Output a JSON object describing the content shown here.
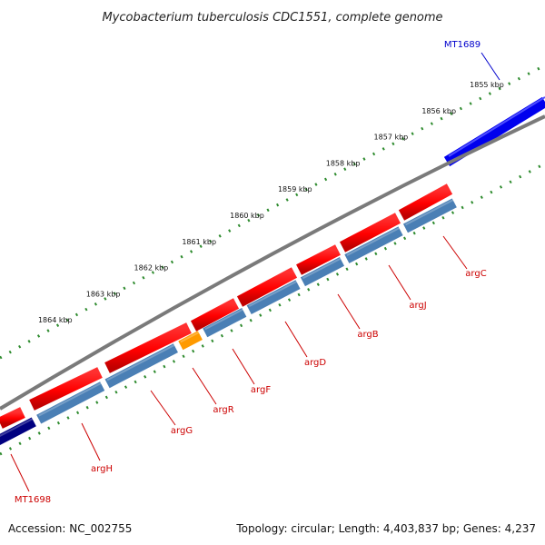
{
  "title": "Mycobacterium tuberculosis CDC1551, complete genome",
  "footer": {
    "accession": "Accession: NC_002755",
    "summary": "Topology: circular; Length: 4,403,837 bp; Genes: 4,237"
  },
  "colors": {
    "backbone": "#888888",
    "gene_red": "#ff0000",
    "gene_red_dark": "#b00000",
    "gene_steelblue": "#4a7fb5",
    "gene_orange": "#ff9a00",
    "gene_blue": "#0000ee",
    "gene_navy": "#000080",
    "ticks": "#2e8b2e",
    "label_red": "#cc0000",
    "label_blue": "#0000cc"
  },
  "chart_data": {
    "type": "genome-map",
    "kbp_ticks": [
      {
        "label": "1855 kbp",
        "kb": 1855
      },
      {
        "label": "1856 kbp",
        "kb": 1856
      },
      {
        "label": "1857 kbp",
        "kb": 1857
      },
      {
        "label": "1858 kbp",
        "kb": 1858
      },
      {
        "label": "1859 kbp",
        "kb": 1859
      },
      {
        "label": "1860 kbp",
        "kb": 1860
      },
      {
        "label": "1861 kbp",
        "kb": 1861
      },
      {
        "label": "1862 kbp",
        "kb": 1862
      },
      {
        "label": "1863 kbp",
        "kb": 1863
      },
      {
        "label": "1864 kbp",
        "kb": 1864
      }
    ],
    "genes": [
      {
        "name": "MT1689",
        "start_kb": 1854.7,
        "end_kb": 1856.3,
        "strand": "outer",
        "color": "gene_blue",
        "label_color": "label_blue"
      },
      {
        "name": "argC",
        "start_kb": 1857.1,
        "end_kb": 1858.2,
        "strand": "inner",
        "color": "gene_steelblue",
        "label_color": "label_red"
      },
      {
        "name": "argJ",
        "start_kb": 1858.2,
        "end_kb": 1859.4,
        "strand": "inner",
        "color": "gene_steelblue",
        "label_color": "label_red"
      },
      {
        "name": "argB",
        "start_kb": 1859.4,
        "end_kb": 1860.3,
        "strand": "inner",
        "color": "gene_steelblue",
        "label_color": "label_red"
      },
      {
        "name": "argD",
        "start_kb": 1860.3,
        "end_kb": 1861.4,
        "strand": "inner",
        "color": "gene_steelblue",
        "label_color": "label_red"
      },
      {
        "name": "argF",
        "start_kb": 1861.4,
        "end_kb": 1862.3,
        "strand": "inner",
        "color": "gene_steelblue",
        "label_color": "label_red"
      },
      {
        "name": "argR",
        "start_kb": 1862.3,
        "end_kb": 1862.8,
        "strand": "inner",
        "color": "gene_orange",
        "label_color": "label_red"
      },
      {
        "name": "argG",
        "start_kb": 1862.8,
        "end_kb": 1864.3,
        "strand": "inner",
        "color": "gene_steelblue",
        "label_color": "label_red"
      },
      {
        "name": "argH",
        "start_kb": 1864.3,
        "end_kb": 1865.7,
        "strand": "inner",
        "color": "gene_steelblue",
        "label_color": "label_red"
      },
      {
        "name": "MT1698",
        "start_kb": 1865.7,
        "end_kb": 1866.6,
        "strand": "inner",
        "color": "gene_navy",
        "label_color": "label_red"
      }
    ]
  }
}
